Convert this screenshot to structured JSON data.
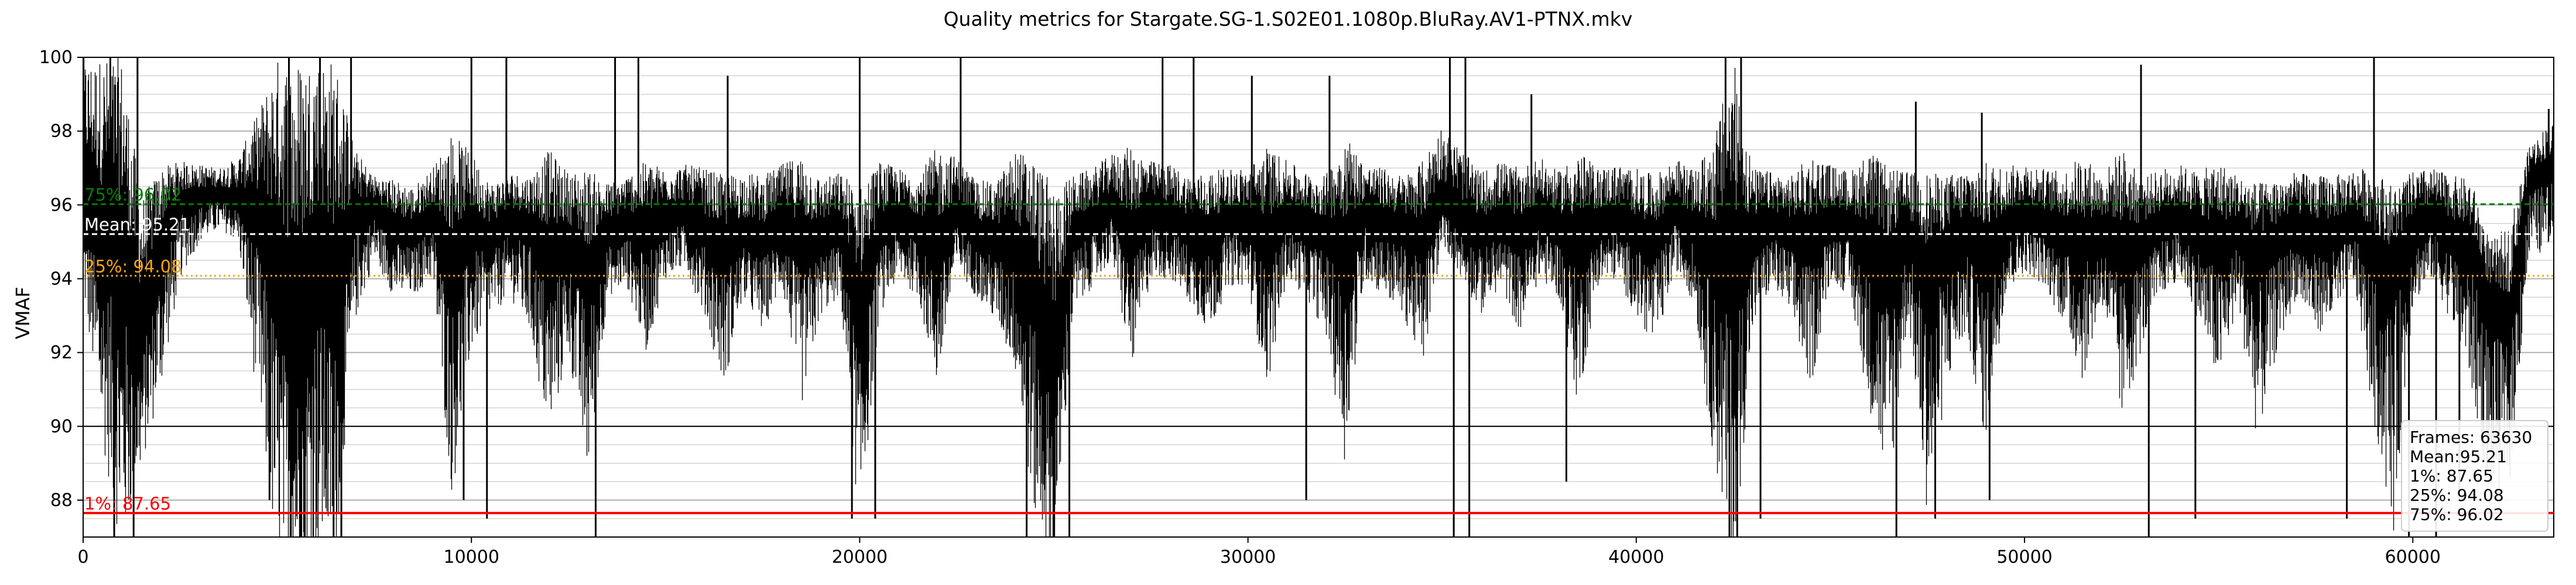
{
  "chart_data": {
    "type": "line",
    "title": "Quality metrics for Stargate.SG-1.S02E01.1080p.BluRay.AV1-PTNX.mkv",
    "xlabel": "",
    "ylabel": "VMAF",
    "xlim": [
      0,
      63630
    ],
    "ylim": [
      87,
      100
    ],
    "x_ticks": [
      0,
      10000,
      20000,
      30000,
      40000,
      50000,
      60000
    ],
    "y_ticks": [
      88,
      90,
      92,
      94,
      96,
      98,
      100
    ],
    "grid": true,
    "series": [
      {
        "x": [
          0,
          500,
          1000,
          1500,
          2000,
          2500,
          3000,
          3500,
          4000,
          4500,
          5000,
          5500,
          6000,
          6500,
          7000,
          7500,
          8000,
          8500,
          9000,
          9500,
          10000,
          10500,
          11000,
          11500,
          12000,
          12500,
          13000,
          13500,
          14000,
          14500,
          15000,
          15500,
          16000,
          16500,
          17000,
          17500,
          18000,
          18500,
          19000,
          19500,
          20000,
          20500,
          21000,
          21500,
          22000,
          22500,
          23000,
          23500,
          24000,
          24500,
          25000,
          25500,
          26000,
          26500,
          27000,
          27500,
          28000,
          28500,
          29000,
          29500,
          30000,
          30500,
          31000,
          31500,
          32000,
          32500,
          33000,
          33500,
          34000,
          34500,
          35000,
          35500,
          36000,
          36500,
          37000,
          37500,
          38000,
          38500,
          39000,
          39500,
          40000,
          40500,
          41000,
          41500,
          42000,
          42500,
          43000,
          43500,
          44000,
          44500,
          45000,
          45500,
          46000,
          46500,
          47000,
          47500,
          48000,
          48500,
          49000,
          49500,
          50000,
          50500,
          51000,
          51500,
          52000,
          52500,
          53000,
          53500,
          54000,
          54500,
          55000,
          55500,
          56000,
          56500,
          57000,
          57500,
          58000,
          58500,
          59000,
          59500,
          60000,
          60500,
          61000,
          61500,
          62000,
          62500,
          63000,
          63500
        ],
        "mean": [
          95.8,
          94.6,
          93.9,
          92.2,
          94.7,
          95.9,
          96.1,
          96.2,
          96.0,
          95.3,
          93.5,
          91.5,
          94.0,
          92.8,
          95.5,
          95.8,
          95.2,
          95.0,
          95.6,
          93.8,
          95.1,
          94.9,
          95.4,
          95.2,
          94.3,
          94.8,
          93.7,
          95.0,
          95.3,
          94.9,
          95.5,
          95.6,
          95.1,
          94.6,
          95.0,
          94.8,
          95.3,
          94.5,
          94.9,
          95.1,
          92.5,
          95.0,
          95.4,
          95.2,
          94.4,
          95.6,
          95.0,
          94.8,
          94.6,
          93.2,
          91.0,
          95.0,
          95.3,
          95.8,
          94.7,
          95.6,
          95.5,
          95.1,
          94.9,
          95.4,
          95.3,
          94.6,
          95.5,
          95.2,
          95.0,
          94.4,
          95.6,
          95.3,
          95.1,
          94.8,
          95.9,
          95.4,
          95.0,
          95.3,
          94.9,
          95.5,
          95.2,
          94.6,
          95.3,
          95.4,
          95.0,
          94.8,
          95.6,
          95.1,
          94.2,
          93.6,
          94.9,
          95.3,
          95.0,
          94.7,
          95.4,
          95.2,
          94.5,
          94.1,
          95.0,
          93.8,
          94.6,
          94.9,
          94.3,
          95.2,
          95.5,
          95.3,
          95.0,
          94.7,
          95.1,
          94.4,
          94.8,
          95.2,
          95.4,
          95.0,
          94.6,
          95.1,
          94.3,
          94.8,
          95.2,
          94.9,
          95.0,
          95.3,
          94.4,
          93.9,
          95.1,
          95.4,
          95.0,
          94.6,
          93.0,
          92.6,
          96.6,
          96.8
        ],
        "low": [
          93.5,
          89.5,
          86.5,
          88.8,
          91.0,
          94.0,
          95.0,
          95.3,
          95.0,
          90.5,
          86.0,
          86.0,
          86.5,
          86.5,
          92.8,
          94.5,
          93.5,
          93.5,
          94.0,
          88.0,
          92.0,
          93.0,
          93.5,
          92.5,
          89.5,
          92.0,
          88.5,
          93.5,
          93.8,
          92.0,
          94.0,
          94.3,
          93.0,
          91.0,
          93.5,
          92.5,
          93.8,
          90.5,
          93.0,
          93.5,
          87.0,
          93.0,
          94.0,
          93.5,
          91.0,
          94.3,
          93.5,
          92.8,
          91.5,
          87.5,
          86.0,
          93.0,
          93.8,
          94.5,
          91.5,
          94.0,
          94.0,
          93.3,
          92.5,
          93.8,
          93.8,
          91.0,
          94.0,
          93.5,
          92.5,
          89.0,
          94.0,
          93.5,
          93.0,
          91.5,
          95.0,
          94.0,
          93.0,
          93.8,
          92.5,
          94.0,
          93.5,
          90.5,
          93.8,
          94.0,
          93.0,
          92.0,
          94.3,
          93.3,
          89.0,
          86.0,
          92.5,
          93.8,
          92.8,
          91.0,
          94.0,
          93.5,
          90.5,
          88.0,
          93.0,
          87.5,
          91.0,
          92.5,
          89.5,
          93.5,
          94.2,
          93.8,
          92.8,
          91.2,
          93.3,
          90.0,
          92.0,
          93.5,
          94.0,
          92.8,
          91.0,
          93.3,
          89.5,
          92.0,
          93.5,
          92.5,
          92.8,
          93.8,
          90.0,
          87.0,
          93.3,
          94.0,
          92.8,
          91.0,
          88.0,
          88.5,
          94.5,
          94.8
        ],
        "high": [
          100.0,
          100.0,
          100.0,
          96.2,
          97.0,
          97.2,
          97.1,
          97.0,
          97.3,
          98.5,
          100.0,
          100.0,
          100.0,
          100.0,
          97.5,
          96.8,
          96.7,
          96.5,
          97.0,
          98.0,
          97.4,
          96.6,
          96.9,
          96.8,
          97.5,
          96.9,
          97.0,
          96.6,
          96.8,
          97.2,
          97.0,
          97.1,
          97.0,
          96.8,
          96.9,
          96.8,
          97.1,
          97.4,
          96.7,
          96.9,
          96.5,
          97.2,
          97.0,
          96.8,
          97.6,
          97.3,
          96.7,
          96.6,
          97.5,
          97.3,
          96.5,
          96.8,
          97.0,
          97.4,
          97.6,
          97.2,
          97.1,
          96.8,
          96.9,
          97.0,
          97.0,
          97.6,
          97.2,
          96.9,
          96.8,
          98.0,
          97.1,
          97.0,
          96.8,
          97.2,
          98.2,
          97.5,
          96.9,
          97.2,
          97.0,
          97.3,
          96.9,
          97.5,
          97.0,
          97.1,
          97.0,
          96.8,
          97.3,
          96.9,
          97.8,
          100.0,
          97.0,
          96.9,
          96.8,
          97.4,
          97.1,
          96.9,
          97.5,
          97.0,
          96.9,
          96.9,
          96.8,
          97.0,
          97.2,
          97.0,
          97.2,
          97.0,
          96.9,
          97.4,
          96.8,
          97.6,
          96.7,
          97.0,
          97.1,
          96.9,
          97.2,
          96.8,
          96.6,
          96.7,
          96.9,
          96.8,
          96.8,
          97.0,
          97.0,
          96.5,
          96.9,
          97.0,
          96.8,
          96.7,
          95.0,
          95.5,
          97.6,
          98.2
        ],
        "dips": [
          {
            "x": 800,
            "min": 86.5
          },
          {
            "x": 1300,
            "min": 87.0
          },
          {
            "x": 4800,
            "min": 88.0
          },
          {
            "x": 5350,
            "min": 86.5
          },
          {
            "x": 5700,
            "min": 86.5
          },
          {
            "x": 6450,
            "min": 86.5
          },
          {
            "x": 6650,
            "min": 87.0
          },
          {
            "x": 9800,
            "min": 88.0
          },
          {
            "x": 10400,
            "min": 87.5
          },
          {
            "x": 13200,
            "min": 87.0
          },
          {
            "x": 19800,
            "min": 87.5
          },
          {
            "x": 20400,
            "min": 87.5
          },
          {
            "x": 24300,
            "min": 87.0
          },
          {
            "x": 25000,
            "min": 86.5
          },
          {
            "x": 25400,
            "min": 86.5
          },
          {
            "x": 31500,
            "min": 88.0
          },
          {
            "x": 35300,
            "min": 86.5
          },
          {
            "x": 35700,
            "min": 87.0
          },
          {
            "x": 38200,
            "min": 88.5
          },
          {
            "x": 42400,
            "min": 86.5
          },
          {
            "x": 42600,
            "min": 86.5
          },
          {
            "x": 43200,
            "min": 87.5
          },
          {
            "x": 46700,
            "min": 87.0
          },
          {
            "x": 47700,
            "min": 87.5
          },
          {
            "x": 49100,
            "min": 88.0
          },
          {
            "x": 53200,
            "min": 87.0
          },
          {
            "x": 54400,
            "min": 87.5
          },
          {
            "x": 58300,
            "min": 87.5
          },
          {
            "x": 59900,
            "min": 87.0
          },
          {
            "x": 60600,
            "min": 87.0
          },
          {
            "x": 61200,
            "min": 88.0
          }
        ],
        "peaks": [
          {
            "x": 700,
            "max": 100.0
          },
          {
            "x": 1400,
            "max": 100.0
          },
          {
            "x": 5300,
            "max": 100.0
          },
          {
            "x": 6100,
            "max": 100.0
          },
          {
            "x": 6900,
            "max": 100.0
          },
          {
            "x": 10000,
            "max": 100.0
          },
          {
            "x": 10900,
            "max": 100.0
          },
          {
            "x": 13700,
            "max": 100.0
          },
          {
            "x": 14300,
            "max": 100.0
          },
          {
            "x": 16600,
            "max": 99.5
          },
          {
            "x": 20000,
            "max": 100.0
          },
          {
            "x": 22600,
            "max": 100.0
          },
          {
            "x": 27800,
            "max": 100.0
          },
          {
            "x": 28600,
            "max": 100.0
          },
          {
            "x": 30100,
            "max": 99.5
          },
          {
            "x": 32100,
            "max": 99.5
          },
          {
            "x": 35200,
            "max": 100.0
          },
          {
            "x": 35600,
            "max": 100.0
          },
          {
            "x": 37300,
            "max": 99.0
          },
          {
            "x": 42300,
            "max": 100.0
          },
          {
            "x": 42700,
            "max": 100.0
          },
          {
            "x": 47200,
            "max": 98.8
          },
          {
            "x": 48900,
            "max": 98.5
          },
          {
            "x": 53000,
            "max": 99.8
          },
          {
            "x": 59000,
            "max": 100.0
          },
          {
            "x": 63500,
            "max": 98.6
          }
        ]
      }
    ],
    "reference_lines": [
      {
        "label": "1%: 87.65",
        "value": 87.65,
        "color": "#ff0000",
        "style": "solid"
      },
      {
        "label": "25%: 94.08",
        "value": 94.08,
        "color": "#ffa500",
        "style": "dotted"
      },
      {
        "label": "Mean: 95.21",
        "value": 95.21,
        "color": "#ffffff",
        "style": "dashed"
      },
      {
        "label": "75%: 96.02",
        "value": 96.02,
        "color": "#008000",
        "style": "dashed"
      }
    ],
    "legend_position": "bottom-right",
    "stats_box": [
      "Frames: 63630",
      "Mean:95.21",
      "1%: 87.65",
      "25%: 94.08",
      "75%: 96.02"
    ]
  }
}
